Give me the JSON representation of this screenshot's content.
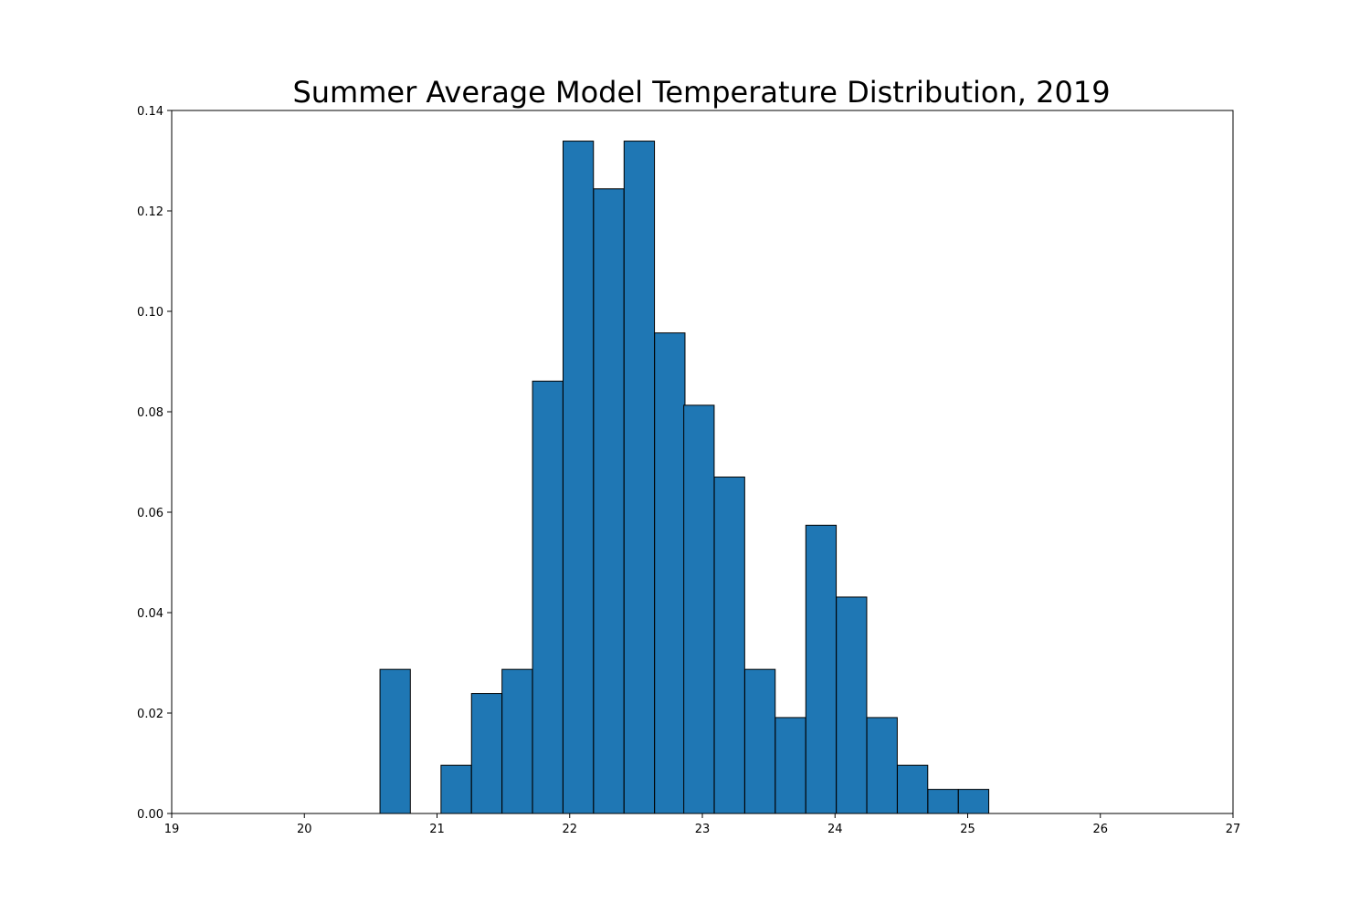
{
  "chart_data": {
    "type": "bar",
    "title": "Summer Average Model Temperature Distribution, 2019",
    "xlabel": "",
    "ylabel": "",
    "xlim": [
      19,
      27
    ],
    "ylim": [
      0,
      0.14
    ],
    "x_ticks": [
      "19",
      "20",
      "21",
      "22",
      "23",
      "24",
      "25",
      "26",
      "27"
    ],
    "y_ticks": [
      "0.00",
      "0.02",
      "0.04",
      "0.06",
      "0.08",
      "0.10",
      "0.12",
      "0.14"
    ],
    "grid": false,
    "colors": {
      "bar_fill": "#1f77b4",
      "bar_edge": "#000000"
    },
    "bin_width": 0.229,
    "bins": [
      {
        "x0": 20.57,
        "value": 0.0287
      },
      {
        "x0": 21.03,
        "value": 0.0096
      },
      {
        "x0": 21.26,
        "value": 0.0239
      },
      {
        "x0": 21.49,
        "value": 0.0287
      },
      {
        "x0": 21.72,
        "value": 0.0861
      },
      {
        "x0": 21.95,
        "value": 0.1339
      },
      {
        "x0": 22.18,
        "value": 0.1244
      },
      {
        "x0": 22.41,
        "value": 0.1339
      },
      {
        "x0": 22.64,
        "value": 0.0957
      },
      {
        "x0": 22.86,
        "value": 0.0813
      },
      {
        "x0": 23.09,
        "value": 0.067
      },
      {
        "x0": 23.32,
        "value": 0.0287
      },
      {
        "x0": 23.55,
        "value": 0.0191
      },
      {
        "x0": 23.78,
        "value": 0.0574
      },
      {
        "x0": 24.01,
        "value": 0.0431
      },
      {
        "x0": 24.24,
        "value": 0.0191
      },
      {
        "x0": 24.47,
        "value": 0.0096
      },
      {
        "x0": 24.7,
        "value": 0.0048
      },
      {
        "x0": 24.93,
        "value": 0.0048
      }
    ]
  }
}
